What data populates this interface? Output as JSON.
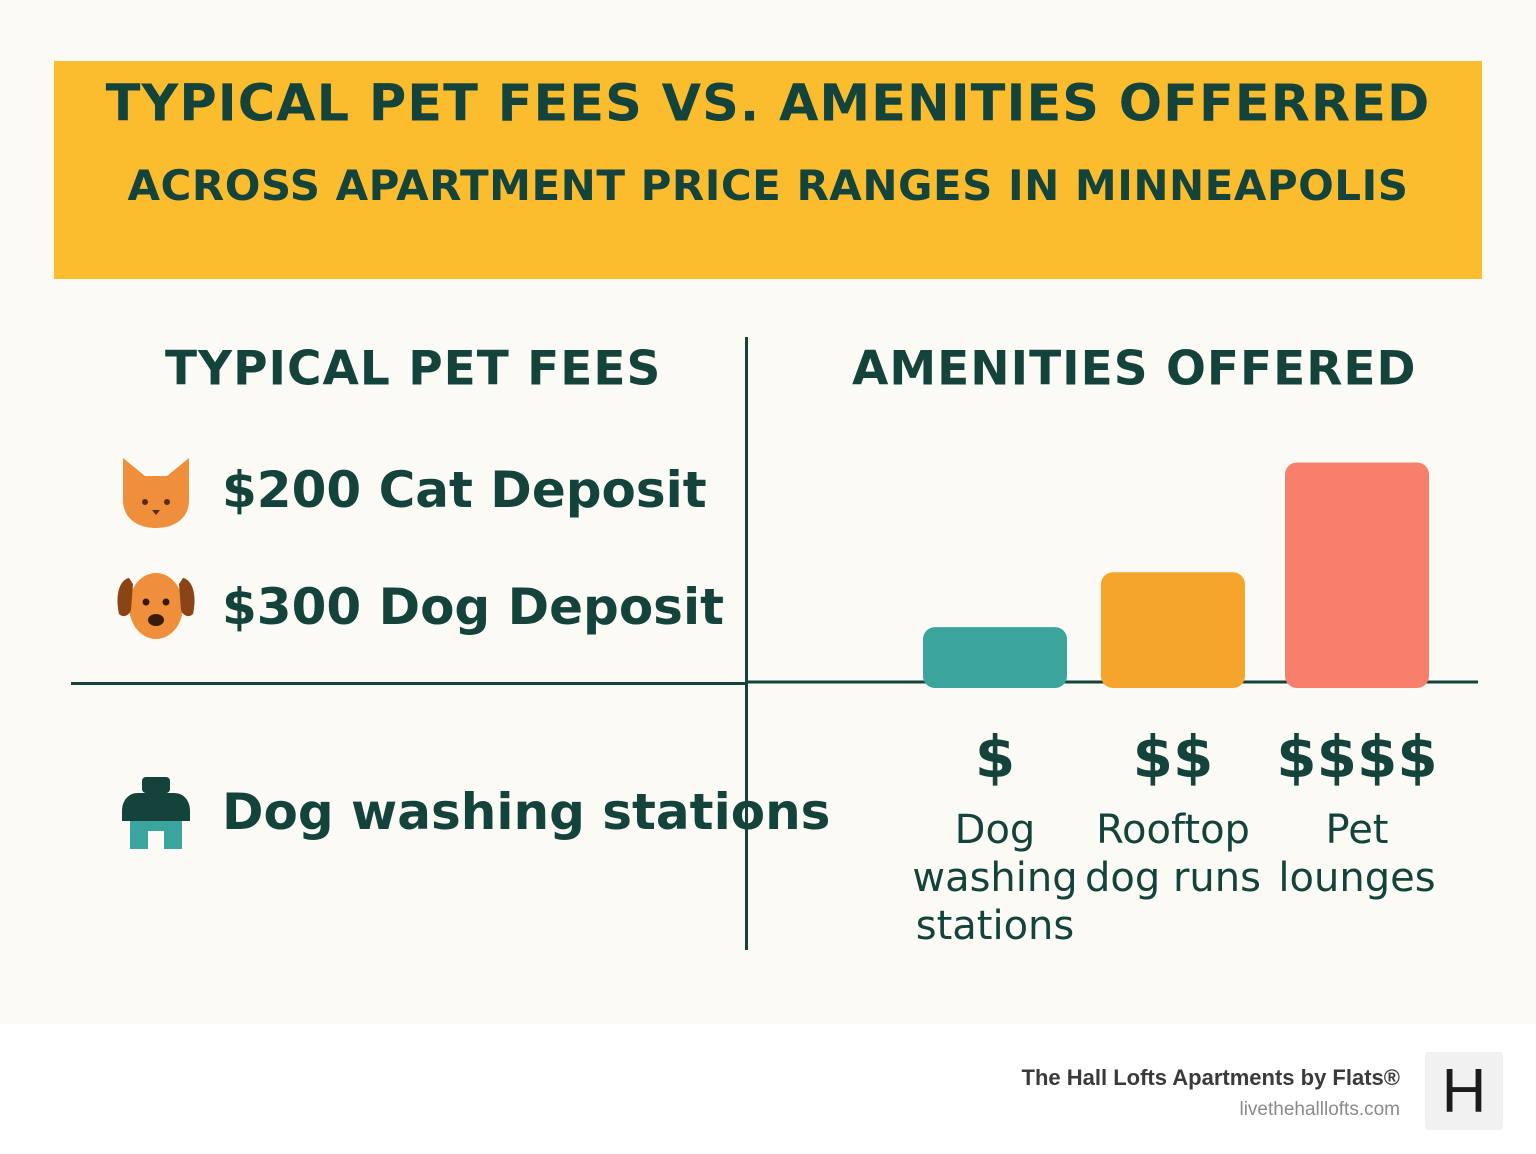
{
  "header": {
    "title": "TYPICAL PET FEES VS. AMENITIES OFFERRED",
    "subtitle": "ACROSS APARTMENT PRICE RANGES IN MINNEAPOLIS"
  },
  "fees_panel": {
    "heading": "TYPICAL PET FEES",
    "items": [
      {
        "label": "$200 Cat Deposit",
        "icon": "cat-icon"
      },
      {
        "label": "$300 Dog Deposit",
        "icon": "dog-icon"
      }
    ],
    "amenity": {
      "label": "Dog washing stations",
      "icon": "dog-house-icon"
    }
  },
  "amenities_panel": {
    "heading": "AMENITIES OFFERED"
  },
  "chart_data": {
    "type": "bar",
    "categories": [
      "Dog washing stations",
      "Rooftop dog runs",
      "Pet lounges"
    ],
    "category_lines": [
      [
        "Dog",
        "washing",
        "stations"
      ],
      [
        "Rooftop",
        "dog runs"
      ],
      [
        "Pet",
        "lounges"
      ]
    ],
    "price_tiers": [
      "$",
      "$$",
      "$$$$"
    ],
    "values": [
      1,
      2,
      4
    ],
    "colors": [
      "#3aa49d",
      "#f6a52c",
      "#f77f6c"
    ],
    "ylim": [
      0,
      4.5
    ]
  },
  "footer": {
    "brand": "The Hall Lofts Apartments by Flats®",
    "website": "livethehalllofts.com",
    "logo_letter": "H"
  }
}
